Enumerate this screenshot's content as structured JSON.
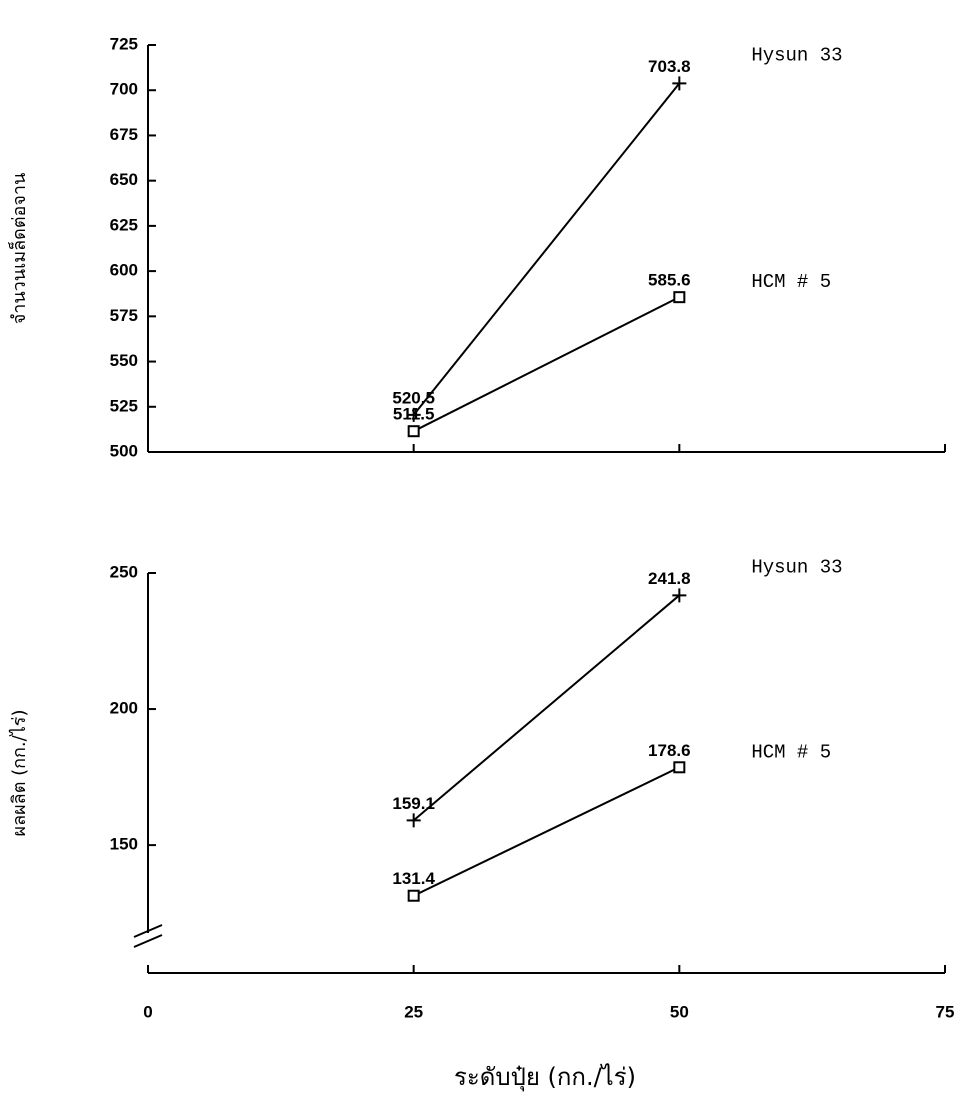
{
  "chart_data": [
    {
      "type": "line",
      "ylabel": "จำนวนเมล็ดต่อจาน",
      "x": [
        25,
        50
      ],
      "xlim": [
        0,
        75
      ],
      "ylim": [
        500,
        725
      ],
      "yticks": [
        500,
        525,
        550,
        575,
        600,
        625,
        650,
        675,
        700,
        725
      ],
      "series": [
        {
          "name": "Hysun 33",
          "color": "#000000",
          "marker": "plus",
          "values": [
            520.5,
            703.8
          ]
        },
        {
          "name": "HCM # 5",
          "color": "#000000",
          "marker": "square",
          "values": [
            511.5,
            585.6
          ]
        }
      ]
    },
    {
      "type": "line",
      "ylabel": "ผลผลิต (กก./ไร่)",
      "xlabel": "ระดับปุ๋ย (กก./ไร่)",
      "x": [
        25,
        50
      ],
      "xlim": [
        0,
        75
      ],
      "xticks": [
        0,
        25,
        50,
        75
      ],
      "ylim": [
        103,
        250
      ],
      "yticks": [
        150,
        200,
        250
      ],
      "axis_break": true,
      "series": [
        {
          "name": "Hysun 33",
          "color": "#000000",
          "marker": "plus",
          "values": [
            159.1,
            241.8
          ]
        },
        {
          "name": "HCM # 5",
          "color": "#000000",
          "marker": "square",
          "values": [
            131.4,
            178.6
          ]
        }
      ]
    }
  ]
}
